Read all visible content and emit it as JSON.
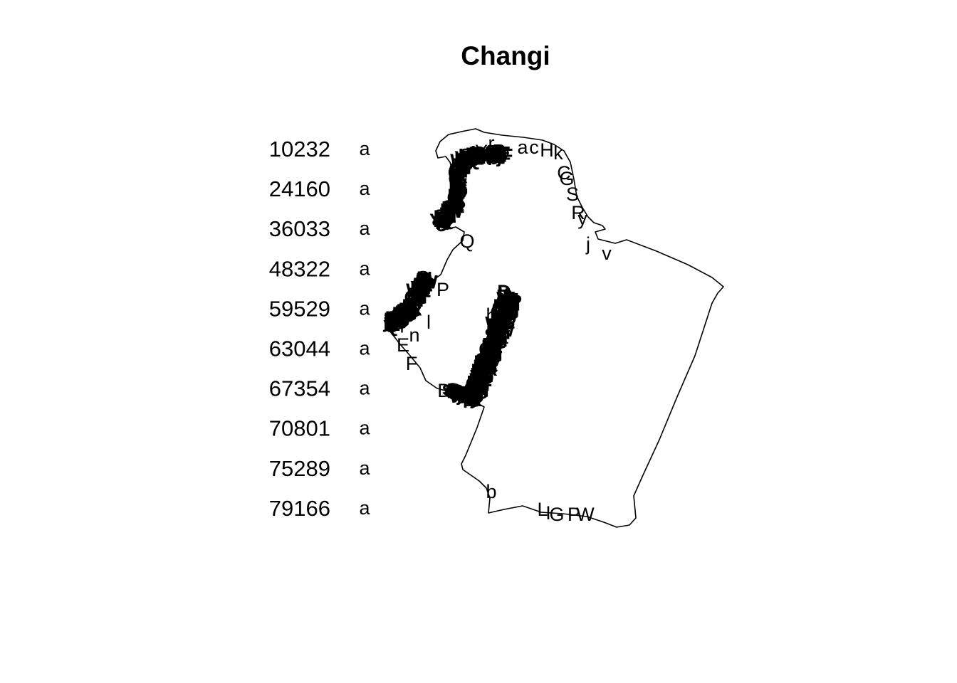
{
  "title": "Changi",
  "colors": {
    "background": "#ffffff",
    "ink": "#000000"
  },
  "legend": {
    "placement": "left",
    "items": [
      {
        "value": "10232",
        "symbol": "a"
      },
      {
        "value": "24160",
        "symbol": "a"
      },
      {
        "value": "36033",
        "symbol": "a"
      },
      {
        "value": "48322",
        "symbol": "a"
      },
      {
        "value": "59529",
        "symbol": "a"
      },
      {
        "value": "63044",
        "symbol": "a"
      },
      {
        "value": "67354",
        "symbol": "a"
      },
      {
        "value": "70801",
        "symbol": "a"
      },
      {
        "value": "75289",
        "symbol": "a"
      },
      {
        "value": "79166",
        "symbol": "a"
      }
    ]
  },
  "map": {
    "region": "Changi",
    "outline_stroke": "#000000",
    "point_labels": [
      "Y",
      "r",
      "o",
      "a",
      "c",
      "H",
      "k",
      "C",
      "G",
      "S",
      "R",
      "y",
      "j",
      "v",
      "Q",
      "f",
      "P",
      "i",
      "l",
      "n",
      "E",
      "F",
      "D",
      "t",
      "b",
      "L",
      "I",
      "G",
      "P",
      "W",
      "p",
      "d",
      "h",
      "s",
      "q"
    ]
  }
}
